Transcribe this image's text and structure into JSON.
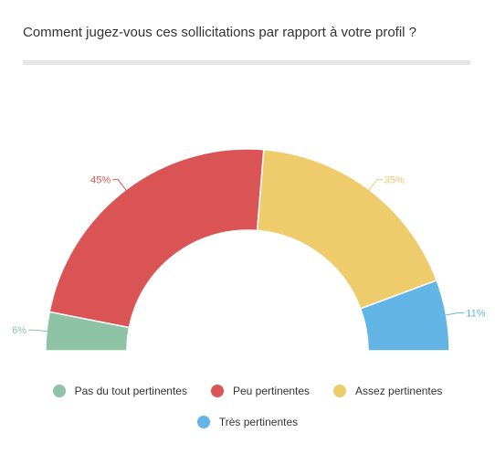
{
  "title": "Comment jugez-vous ces sollicitations par rapport à votre profil ?",
  "chart_data": {
    "type": "pie",
    "title": "Comment jugez-vous ces sollicitations par rapport à votre profil ?",
    "categories": [
      "Pas du tout pertinentes",
      "Peu pertinentes",
      "Assez pertinentes",
      "Très pertinentes"
    ],
    "values": [
      6,
      45,
      35,
      11
    ],
    "labels": [
      "6%",
      "45%",
      "35%",
      "11%"
    ],
    "colors": [
      "#8fc3a5",
      "#db5455",
      "#eecb6b",
      "#62b5e5"
    ],
    "legend_position": "bottom"
  },
  "legend": {
    "row1": [
      {
        "label": "Pas du tout pertinentes",
        "color": "#8fc3a5"
      },
      {
        "label": "Peu pertinentes",
        "color": "#db5455"
      },
      {
        "label": "Assez pertinentes",
        "color": "#eecb6b"
      }
    ],
    "row2": [
      {
        "label": "Très pertinentes",
        "color": "#62b5e5"
      }
    ]
  }
}
